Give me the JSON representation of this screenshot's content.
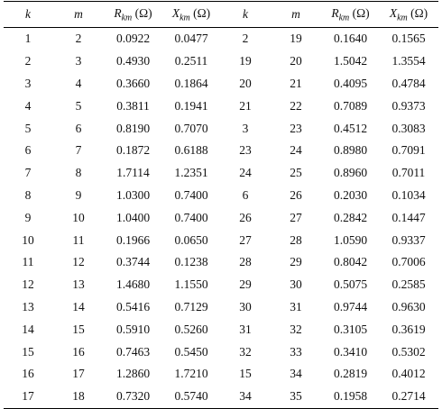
{
  "headers": [
    {
      "main": "k",
      "sub": "",
      "unit": ""
    },
    {
      "main": "m",
      "sub": "",
      "unit": ""
    },
    {
      "main": "R",
      "sub": "km",
      "unit": " (Ω)"
    },
    {
      "main": "X",
      "sub": "km",
      "unit": " (Ω)"
    },
    {
      "main": "k",
      "sub": "",
      "unit": ""
    },
    {
      "main": "m",
      "sub": "",
      "unit": ""
    },
    {
      "main": "R",
      "sub": "km",
      "unit": " (Ω)"
    },
    {
      "main": "X",
      "sub": "km",
      "unit": " (Ω)"
    }
  ],
  "rows": [
    [
      "1",
      "2",
      "0.0922",
      "0.0477",
      "2",
      "19",
      "0.1640",
      "0.1565"
    ],
    [
      "2",
      "3",
      "0.4930",
      "0.2511",
      "19",
      "20",
      "1.5042",
      "1.3554"
    ],
    [
      "3",
      "4",
      "0.3660",
      "0.1864",
      "20",
      "21",
      "0.4095",
      "0.4784"
    ],
    [
      "4",
      "5",
      "0.3811",
      "0.1941",
      "21",
      "22",
      "0.7089",
      "0.9373"
    ],
    [
      "5",
      "6",
      "0.8190",
      "0.7070",
      "3",
      "23",
      "0.4512",
      "0.3083"
    ],
    [
      "6",
      "7",
      "0.1872",
      "0.6188",
      "23",
      "24",
      "0.8980",
      "0.7091"
    ],
    [
      "7",
      "8",
      "1.7114",
      "1.2351",
      "24",
      "25",
      "0.8960",
      "0.7011"
    ],
    [
      "8",
      "9",
      "1.0300",
      "0.7400",
      "6",
      "26",
      "0.2030",
      "0.1034"
    ],
    [
      "9",
      "10",
      "1.0400",
      "0.7400",
      "26",
      "27",
      "0.2842",
      "0.1447"
    ],
    [
      "10",
      "11",
      "0.1966",
      "0.0650",
      "27",
      "28",
      "1.0590",
      "0.9337"
    ],
    [
      "11",
      "12",
      "0.3744",
      "0.1238",
      "28",
      "29",
      "0.8042",
      "0.7006"
    ],
    [
      "12",
      "13",
      "1.4680",
      "1.1550",
      "29",
      "30",
      "0.5075",
      "0.2585"
    ],
    [
      "13",
      "14",
      "0.5416",
      "0.7129",
      "30",
      "31",
      "0.9744",
      "0.9630"
    ],
    [
      "14",
      "15",
      "0.5910",
      "0.5260",
      "31",
      "32",
      "0.3105",
      "0.3619"
    ],
    [
      "15",
      "16",
      "0.7463",
      "0.5450",
      "32",
      "33",
      "0.3410",
      "0.5302"
    ],
    [
      "16",
      "17",
      "1.2860",
      "1.7210",
      "15",
      "34",
      "0.2819",
      "0.4012"
    ],
    [
      "17",
      "18",
      "0.7320",
      "0.5740",
      "34",
      "35",
      "0.1958",
      "0.2714"
    ]
  ]
}
